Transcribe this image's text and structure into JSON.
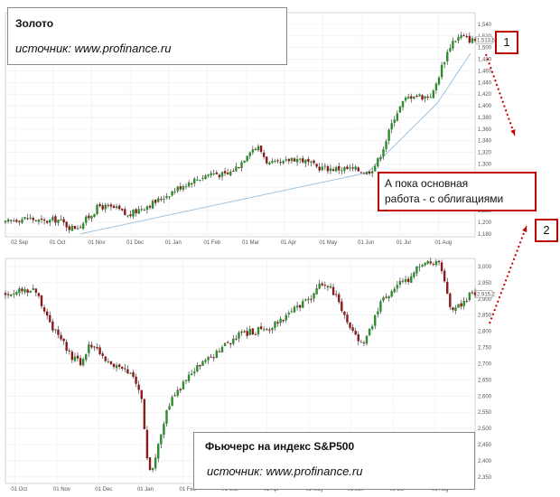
{
  "gold_box": {
    "title": "Золото",
    "source": "источник: www.profinance.ru"
  },
  "sp_box": {
    "title": "Фьючерс на индекс S&P500",
    "source": "источник: www.profinance.ru"
  },
  "note": {
    "line1": "А пока основная",
    "line2": "работа - с облигациями"
  },
  "markers": {
    "m1": "1",
    "m2": "2"
  },
  "colors": {
    "up": "#2e8b2e",
    "down": "#8b1a1a",
    "trend": "#9ec3e0",
    "arrow": "#c00000",
    "grid": "#eeeeee"
  },
  "chart_data": [
    {
      "type": "candlestick",
      "title": "Золото",
      "x_tick_labels": [
        "02 Sep",
        "01 Oct",
        "01 Nov",
        "01 Dec",
        "01 Jan",
        "01 Feb",
        "01 Mar",
        "01 Apr",
        "01 May",
        "01 Jun",
        "01 Jul",
        "01 Aug"
      ],
      "y_tick_labels": [
        "1,540",
        "1,520",
        "1,500",
        "1,480",
        "1,460",
        "1,440",
        "1,420",
        "1,400",
        "1,380",
        "1,360",
        "1,340",
        "1,320",
        "1,300",
        "1,280",
        "1,260",
        "1,240",
        "1,220",
        "1,200",
        "1,180"
      ],
      "ylim": [
        1175,
        1560
      ],
      "annotations": [
        "1,513.5"
      ],
      "trendlines": [
        {
          "points": [
            [
              0.16,
              1180
            ],
            [
              0.77,
              1285
            ]
          ]
        },
        {
          "points": [
            [
              0.77,
              1285
            ],
            [
              0.92,
              1405
            ]
          ]
        },
        {
          "points": [
            [
              0.92,
              1405
            ],
            [
              0.99,
              1490
            ]
          ]
        }
      ],
      "anchors": [
        [
          0.0,
          1198
        ],
        [
          0.02,
          1205
        ],
        [
          0.05,
          1207
        ],
        [
          0.08,
          1200
        ],
        [
          0.11,
          1205
        ],
        [
          0.14,
          1190
        ],
        [
          0.16,
          1195
        ],
        [
          0.2,
          1228
        ],
        [
          0.24,
          1222
        ],
        [
          0.26,
          1210
        ],
        [
          0.29,
          1225
        ],
        [
          0.32,
          1235
        ],
        [
          0.35,
          1250
        ],
        [
          0.38,
          1265
        ],
        [
          0.41,
          1275
        ],
        [
          0.44,
          1285
        ],
        [
          0.47,
          1280
        ],
        [
          0.5,
          1300
        ],
        [
          0.52,
          1325
        ],
        [
          0.54,
          1328
        ],
        [
          0.56,
          1300
        ],
        [
          0.59,
          1300
        ],
        [
          0.61,
          1310
        ],
        [
          0.63,
          1308
        ],
        [
          0.66,
          1295
        ],
        [
          0.69,
          1292
        ],
        [
          0.72,
          1292
        ],
        [
          0.75,
          1290
        ],
        [
          0.77,
          1285
        ],
        [
          0.79,
          1300
        ],
        [
          0.81,
          1340
        ],
        [
          0.83,
          1385
        ],
        [
          0.85,
          1410
        ],
        [
          0.87,
          1420
        ],
        [
          0.89,
          1415
        ],
        [
          0.91,
          1420
        ],
        [
          0.93,
          1470
        ],
        [
          0.95,
          1510
        ],
        [
          0.97,
          1520
        ],
        [
          0.99,
          1513
        ]
      ]
    },
    {
      "type": "candlestick",
      "title": "Фьючерс на индекс S&P500",
      "x_tick_labels": [
        "01 Oct",
        "01 Nov",
        "01 Dec",
        "01 Jan",
        "01 Feb",
        "01 Mar",
        "01 Apr",
        "01 May",
        "01 Jun",
        "01 Jul",
        "01 Aug"
      ],
      "y_tick_labels": [
        "3,000",
        "2,950",
        "2,900",
        "2,850",
        "2,800",
        "2,750",
        "2,700",
        "2,650",
        "2,600",
        "2,550",
        "2,500",
        "2,450",
        "2,400",
        "2,350"
      ],
      "ylim": [
        2330,
        3025
      ],
      "annotations": [
        "2,915.2"
      ],
      "anchors": [
        [
          0.0,
          2915
        ],
        [
          0.03,
          2925
        ],
        [
          0.06,
          2930
        ],
        [
          0.08,
          2880
        ],
        [
          0.1,
          2810
        ],
        [
          0.12,
          2770
        ],
        [
          0.14,
          2720
        ],
        [
          0.16,
          2700
        ],
        [
          0.18,
          2760
        ],
        [
          0.2,
          2740
        ],
        [
          0.22,
          2700
        ],
        [
          0.25,
          2680
        ],
        [
          0.27,
          2660
        ],
        [
          0.29,
          2600
        ],
        [
          0.3,
          2420
        ],
        [
          0.31,
          2360
        ],
        [
          0.33,
          2480
        ],
        [
          0.35,
          2580
        ],
        [
          0.38,
          2640
        ],
        [
          0.41,
          2690
        ],
        [
          0.44,
          2720
        ],
        [
          0.47,
          2760
        ],
        [
          0.5,
          2790
        ],
        [
          0.53,
          2800
        ],
        [
          0.56,
          2810
        ],
        [
          0.59,
          2840
        ],
        [
          0.62,
          2870
        ],
        [
          0.65,
          2900
        ],
        [
          0.67,
          2950
        ],
        [
          0.69,
          2935
        ],
        [
          0.71,
          2900
        ],
        [
          0.72,
          2850
        ],
        [
          0.74,
          2800
        ],
        [
          0.76,
          2760
        ],
        [
          0.78,
          2820
        ],
        [
          0.8,
          2890
        ],
        [
          0.83,
          2940
        ],
        [
          0.86,
          2960
        ],
        [
          0.88,
          3000
        ],
        [
          0.9,
          3010
        ],
        [
          0.92,
          3015
        ],
        [
          0.93,
          2990
        ],
        [
          0.95,
          2860
        ],
        [
          0.97,
          2880
        ],
        [
          0.99,
          2915
        ]
      ]
    }
  ]
}
